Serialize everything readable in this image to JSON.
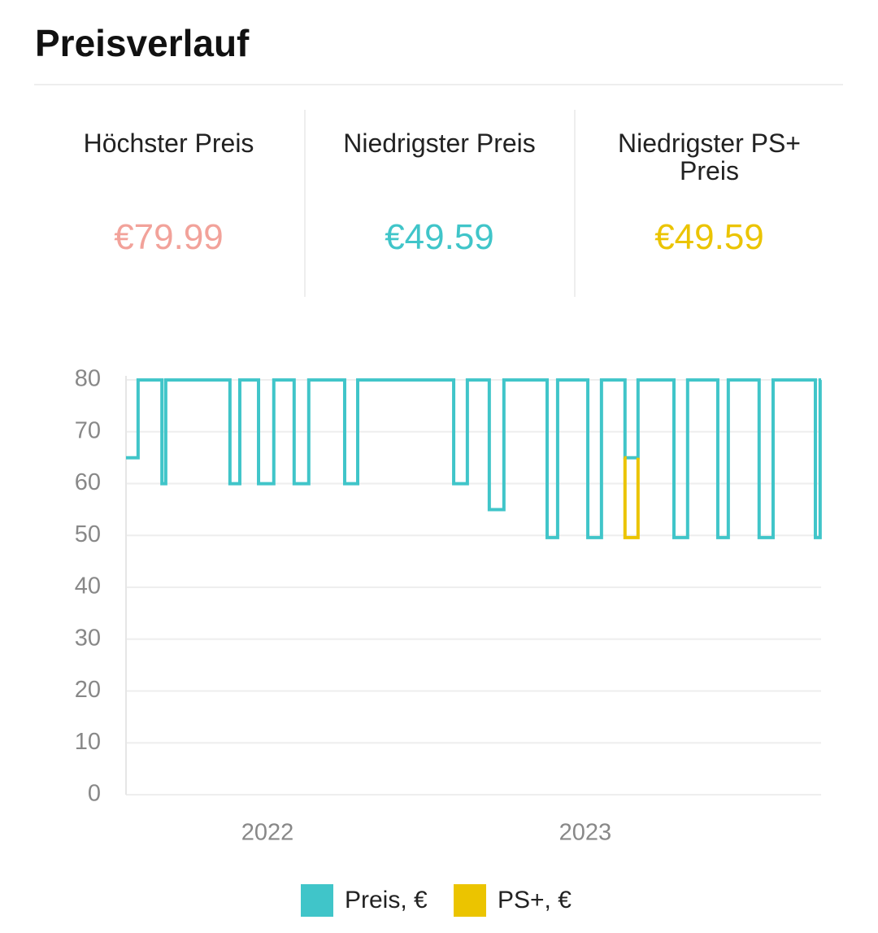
{
  "header": {
    "title": "Preisverlauf"
  },
  "stats": [
    {
      "label": "Höchster Preis",
      "value": "€79.99",
      "color": "#f2a29a"
    },
    {
      "label": "Niedrigster Preis",
      "value": "€49.59",
      "color": "#40c5c9"
    },
    {
      "label": "Niedrigster PS+ Preis",
      "value": "€49.59",
      "color": "#ebc400"
    }
  ],
  "chart_data": {
    "type": "step",
    "xlim": [
      2021.555,
      2023.742
    ],
    "xticks": [
      2022,
      2023
    ],
    "ylim": [
      0,
      80
    ],
    "yticks": [
      0,
      10,
      20,
      30,
      40,
      50,
      60,
      70,
      80
    ],
    "grid": true,
    "legend": "bottom",
    "series": [
      {
        "name": "Preis, €",
        "color": "#40c5c9",
        "x": [
          2021.555,
          2021.593,
          2021.668,
          2021.68,
          2021.882,
          2021.913,
          2021.972,
          2022.02,
          2022.084,
          2022.13,
          2022.243,
          2022.284,
          2022.586,
          2022.629,
          2022.698,
          2022.744,
          2022.88,
          2022.913,
          2023.008,
          2023.051,
          2023.125,
          2023.166,
          2023.279,
          2023.322,
          2023.417,
          2023.45,
          2023.547,
          2023.591,
          2023.724,
          2023.739
        ],
        "values": [
          64.99,
          79.99,
          59.99,
          79.99,
          59.99,
          79.99,
          59.99,
          79.99,
          59.99,
          79.99,
          59.99,
          79.99,
          59.99,
          79.99,
          54.99,
          79.99,
          49.59,
          79.99,
          49.59,
          79.99,
          64.99,
          79.99,
          49.59,
          79.99,
          49.59,
          79.99,
          49.59,
          79.99,
          49.59,
          79.99
        ]
      },
      {
        "name": "PS+, €",
        "color": "#ebc400",
        "x": [
          2023.122,
          2023.125,
          2023.166
        ],
        "values": [
          64.99,
          49.59,
          64.99
        ]
      }
    ]
  }
}
